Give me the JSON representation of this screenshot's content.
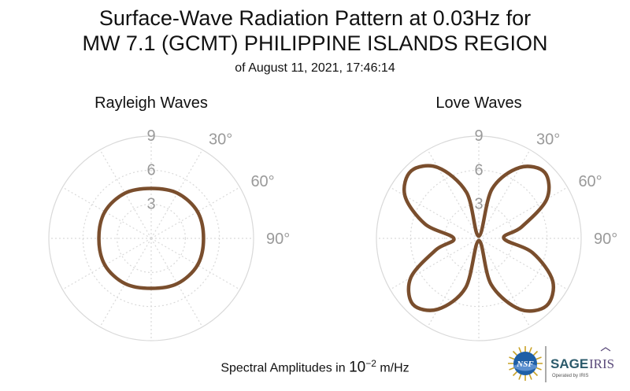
{
  "title": {
    "line1": "Surface-Wave Radiation Pattern at 0.03Hz for",
    "line2": "MW 7.1 (GCMT) PHILIPPINE ISLANDS REGION",
    "subtitle": "of August 11, 2021, 17:46:14"
  },
  "footer": {
    "prefix": "Spectral Amplitudes in ",
    "base": "10",
    "exponent": "−2",
    "suffix": " m/Hz"
  },
  "logos": {
    "nsf": "NSF",
    "sage": "SAGE",
    "iris": "IRIS",
    "tagline": "Operated by IRIS"
  },
  "colors": {
    "pattern": "#7a4e2d",
    "grid": "#d9d9d9",
    "labels": "#9a9a9a"
  },
  "chart_data": [
    {
      "type": "polar",
      "title": "Rayleigh Waves",
      "radial_ticks": [
        3,
        6,
        9
      ],
      "rlim": [
        0,
        9
      ],
      "angle_ticks": [
        30,
        60,
        90
      ],
      "angle_tick_labels": [
        "30°",
        "60°",
        "90°"
      ],
      "series": [
        {
          "theta": [
            0,
            30,
            60,
            90,
            120,
            150,
            180,
            210,
            240,
            270,
            300,
            330
          ],
          "r": [
            4.4,
            4.6,
            4.7,
            4.6,
            4.7,
            4.6,
            4.4,
            4.6,
            4.7,
            4.6,
            4.7,
            4.6
          ]
        }
      ]
    },
    {
      "type": "polar",
      "title": "Love Waves",
      "radial_ticks": [
        3,
        6,
        9
      ],
      "rlim": [
        0,
        9
      ],
      "angle_ticks": [
        30,
        60,
        90
      ],
      "angle_tick_labels": [
        "30°",
        "60°",
        "90°"
      ],
      "series": [
        {
          "theta": [
            0,
            15,
            30,
            45,
            60,
            75,
            90,
            105,
            120,
            135,
            150,
            165,
            180,
            195,
            210,
            225,
            240,
            255,
            270,
            285,
            300,
            315,
            330,
            345
          ],
          "r": [
            0.2,
            4.5,
            7.2,
            8.2,
            6.9,
            3.9,
            2.2,
            4.9,
            7.5,
            8.4,
            7.2,
            4.2,
            0.2,
            4.5,
            7.2,
            8.2,
            6.9,
            3.9,
            2.2,
            4.9,
            7.5,
            8.4,
            7.2,
            4.2
          ]
        }
      ]
    }
  ]
}
